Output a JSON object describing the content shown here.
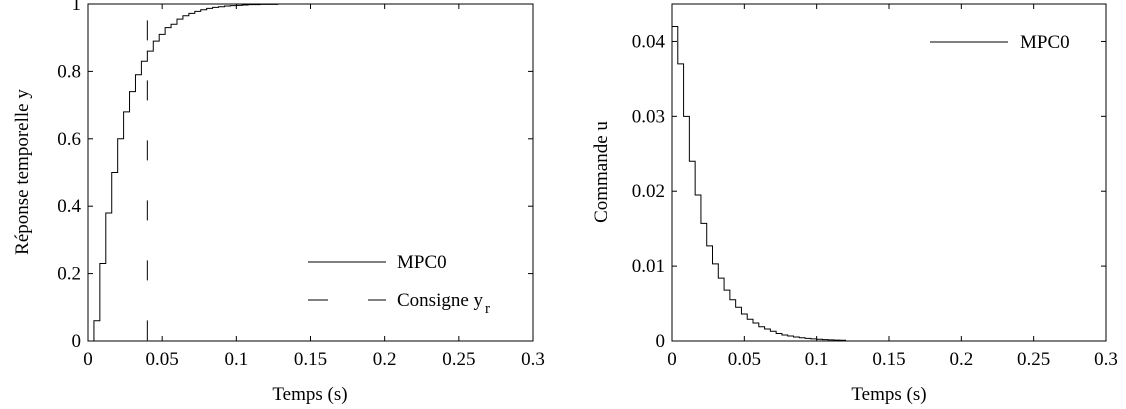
{
  "chart_data": [
    {
      "type": "line",
      "xlabel": "Temps (s)",
      "ylabel": "Réponse temporelle y",
      "xlim": [
        0,
        0.3
      ],
      "ylim": [
        0,
        1
      ],
      "xticks": [
        0,
        0.05,
        0.1,
        0.15,
        0.2,
        0.25,
        0.3
      ],
      "xtick_labels": [
        "0",
        "0.05",
        "0.1",
        "0.15",
        "0.2",
        "0.25",
        "0.3"
      ],
      "yticks": [
        0,
        0.2,
        0.4,
        0.6,
        0.8,
        1
      ],
      "ytick_labels": [
        "0",
        "0.2",
        "0.4",
        "0.6",
        "0.8",
        "1"
      ],
      "grid": false,
      "legend_position": "bottom-right",
      "series": [
        {
          "name": "MPC0",
          "style": "solid-stairs",
          "x": [
            0,
            0.004,
            0.008,
            0.012,
            0.016,
            0.02,
            0.024,
            0.028,
            0.032,
            0.036,
            0.04,
            0.044,
            0.048,
            0.052,
            0.056,
            0.06,
            0.064,
            0.068,
            0.072,
            0.076,
            0.08,
            0.084,
            0.088,
            0.092,
            0.096,
            0.1,
            0.104,
            0.108,
            0.112,
            0.116,
            0.12,
            0.124,
            0.128,
            0.132,
            0.136,
            0.14,
            0.15,
            0.16,
            0.17,
            0.18,
            0.19,
            0.2,
            0.3
          ],
          "y": [
            0,
            0.06,
            0.23,
            0.38,
            0.5,
            0.6,
            0.68,
            0.74,
            0.79,
            0.83,
            0.86,
            0.89,
            0.91,
            0.93,
            0.94,
            0.955,
            0.965,
            0.972,
            0.978,
            0.983,
            0.987,
            0.99,
            0.992,
            0.994,
            0.995,
            0.996,
            0.997,
            0.998,
            0.998,
            0.999,
            0.999,
            0.999,
            1.0,
            1.0,
            1.0,
            1.0,
            1.0,
            1.0,
            1.0,
            1.0,
            1.0,
            1.0,
            1.0
          ]
        },
        {
          "name": "Consigne y",
          "name_subscript": "r",
          "style": "dashed",
          "x": [
            0,
            0.04,
            0.04,
            0.3
          ],
          "y": [
            0,
            0,
            1,
            1
          ]
        }
      ]
    },
    {
      "type": "line",
      "xlabel": "Temps (s)",
      "ylabel": "Commande u",
      "xlim": [
        0,
        0.3
      ],
      "ylim": [
        0,
        0.045
      ],
      "xticks": [
        0,
        0.05,
        0.1,
        0.15,
        0.2,
        0.25,
        0.3
      ],
      "xtick_labels": [
        "0",
        "0.05",
        "0.1",
        "0.15",
        "0.2",
        "0.25",
        "0.3"
      ],
      "yticks": [
        0,
        0.01,
        0.02,
        0.03,
        0.04
      ],
      "ytick_labels": [
        "0",
        "0.01",
        "0.02",
        "0.03",
        "0.04"
      ],
      "grid": false,
      "legend_position": "top-right",
      "series": [
        {
          "name": "MPC0",
          "style": "solid-stairs",
          "x": [
            0,
            0.004,
            0.008,
            0.012,
            0.016,
            0.02,
            0.024,
            0.028,
            0.032,
            0.036,
            0.04,
            0.044,
            0.048,
            0.052,
            0.056,
            0.06,
            0.064,
            0.068,
            0.072,
            0.076,
            0.08,
            0.084,
            0.088,
            0.092,
            0.096,
            0.1,
            0.104,
            0.108,
            0.112,
            0.116,
            0.12,
            0.3
          ],
          "y": [
            0.042,
            0.037,
            0.03,
            0.024,
            0.0195,
            0.0157,
            0.0127,
            0.0103,
            0.0084,
            0.0068,
            0.0055,
            0.0045,
            0.0036,
            0.0029,
            0.0024,
            0.0019,
            0.0016,
            0.0013,
            0.001,
            0.0008,
            0.00066,
            0.00054,
            0.00044,
            0.00035,
            0.00028,
            0.00023,
            0.00018,
            0.00015,
            0.00012,
            0.0001,
            0.0,
            0.0
          ]
        }
      ]
    }
  ]
}
